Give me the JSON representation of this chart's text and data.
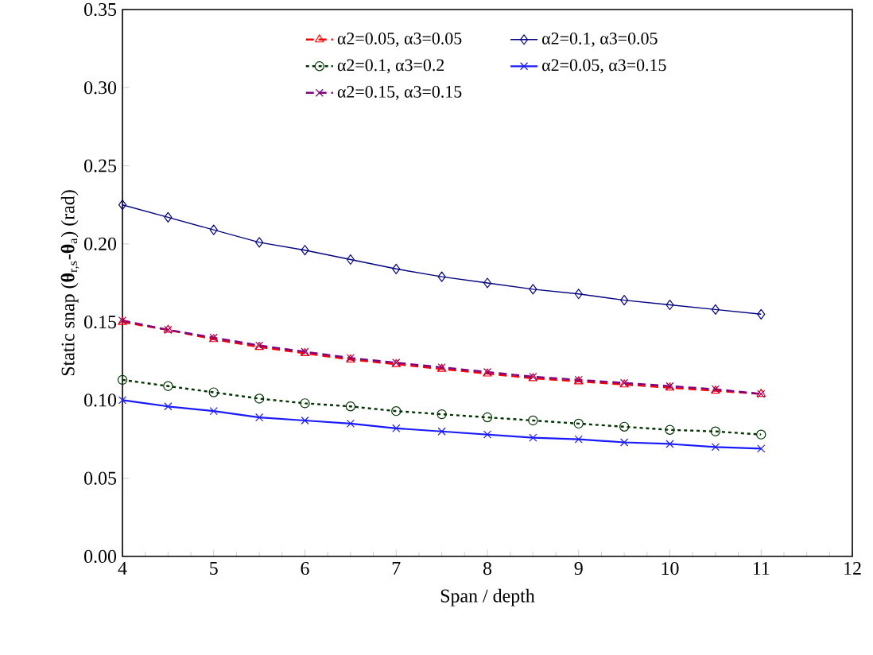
{
  "chart_data": {
    "type": "line",
    "xlabel": "Span / depth",
    "ylabel": "Static snap (**θ**$_{r,s}$-**θ**$_{a}$) (rad)",
    "x": [
      4,
      4.5,
      5,
      5.5,
      6,
      6.5,
      7,
      7.5,
      8,
      8.5,
      9,
      9.5,
      10,
      10.5,
      11
    ],
    "xlim": [
      4,
      12
    ],
    "xticks": [
      4,
      5,
      6,
      7,
      8,
      9,
      10,
      11,
      12
    ],
    "ylim": [
      0,
      0.35
    ],
    "yticks": [
      {
        "value": 0,
        "label": "0.00"
      },
      {
        "value": 0.05,
        "label": "0.05"
      },
      {
        "value": 0.1,
        "label": "0.10"
      },
      {
        "value": 0.15,
        "label": "0.15"
      },
      {
        "value": 0.2,
        "label": "0.20"
      },
      {
        "value": 0.25,
        "label": "0.25"
      },
      {
        "value": 0.3,
        "label": "0.30"
      },
      {
        "value": 0.35,
        "label": "0.35"
      }
    ],
    "grid": false,
    "legend": "top",
    "series": [
      {
        "name": "α2=0.05, α3=0.05",
        "color": "#ff0000",
        "marker": "triangle",
        "line_style": "dashed",
        "values": [
          0.15,
          0.145,
          0.139,
          0.134,
          0.13,
          0.126,
          0.123,
          0.12,
          0.117,
          0.114,
          0.112,
          0.11,
          0.108,
          0.106,
          0.104
        ]
      },
      {
        "name": "α2=0.1, α3=0.05",
        "color": "#000080",
        "marker": "diamond",
        "line_style": "solid",
        "values": [
          0.225,
          0.217,
          0.209,
          0.201,
          0.196,
          0.19,
          0.184,
          0.179,
          0.175,
          0.171,
          0.168,
          0.164,
          0.161,
          0.158,
          0.155
        ]
      },
      {
        "name": "α2=0.1, α3=0.2",
        "color": "#003300",
        "marker": "circle",
        "line_style": "dotted",
        "values": [
          0.113,
          0.109,
          0.105,
          0.101,
          0.098,
          0.096,
          0.093,
          0.091,
          0.089,
          0.087,
          0.085,
          0.083,
          0.081,
          0.08,
          0.078
        ]
      },
      {
        "name": "α2=0.05, α3=0.15",
        "color": "#1a1aff",
        "marker": "cross",
        "line_style": "solid",
        "values": [
          0.1,
          0.096,
          0.093,
          0.089,
          0.087,
          0.085,
          0.082,
          0.08,
          0.078,
          0.076,
          0.075,
          0.073,
          0.072,
          0.07,
          0.069
        ]
      },
      {
        "name": "α2=0.15, α3=0.15",
        "color": "#800080",
        "marker": "cross",
        "line_style": "dashed",
        "values": [
          0.151,
          0.145,
          0.14,
          0.135,
          0.131,
          0.127,
          0.124,
          0.121,
          0.118,
          0.115,
          0.113,
          0.111,
          0.109,
          0.107,
          0.104
        ]
      }
    ]
  }
}
